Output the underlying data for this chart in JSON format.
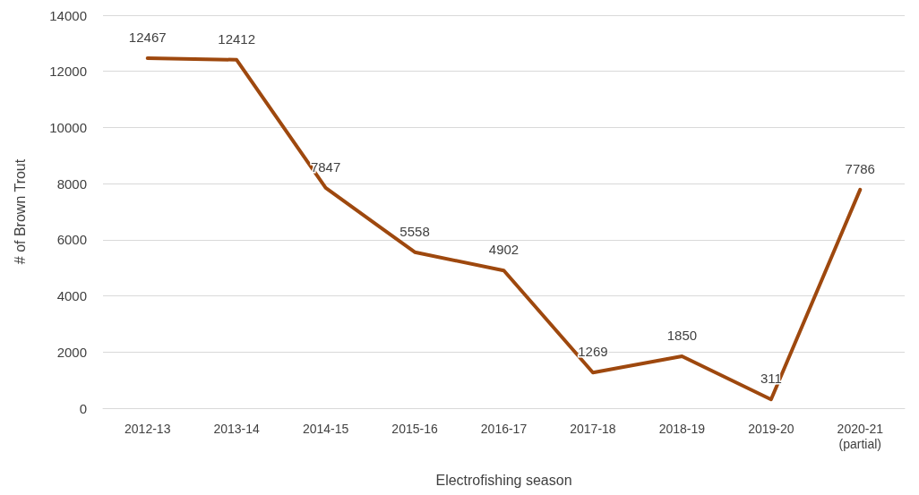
{
  "chart_data": {
    "type": "line",
    "xlabel": "Electrofishing season",
    "ylabel": "# of Brown Trout",
    "categories": [
      "2012-13",
      "2013-14",
      "2014-15",
      "2015-16",
      "2016-17",
      "2017-18",
      "2018-19",
      "2019-20",
      "2020-21\n(partial)"
    ],
    "series": [
      {
        "color": "#9e480e",
        "values": [
          12467,
          12412,
          7847,
          5558,
          4902,
          1269,
          1850,
          311,
          7786
        ]
      }
    ],
    "ylim": [
      0,
      14000
    ],
    "yticks": [
      0,
      2000,
      4000,
      6000,
      8000,
      10000,
      12000,
      14000
    ],
    "grid": "y",
    "marker": "none",
    "line_style": "solid",
    "data_labels": true
  }
}
